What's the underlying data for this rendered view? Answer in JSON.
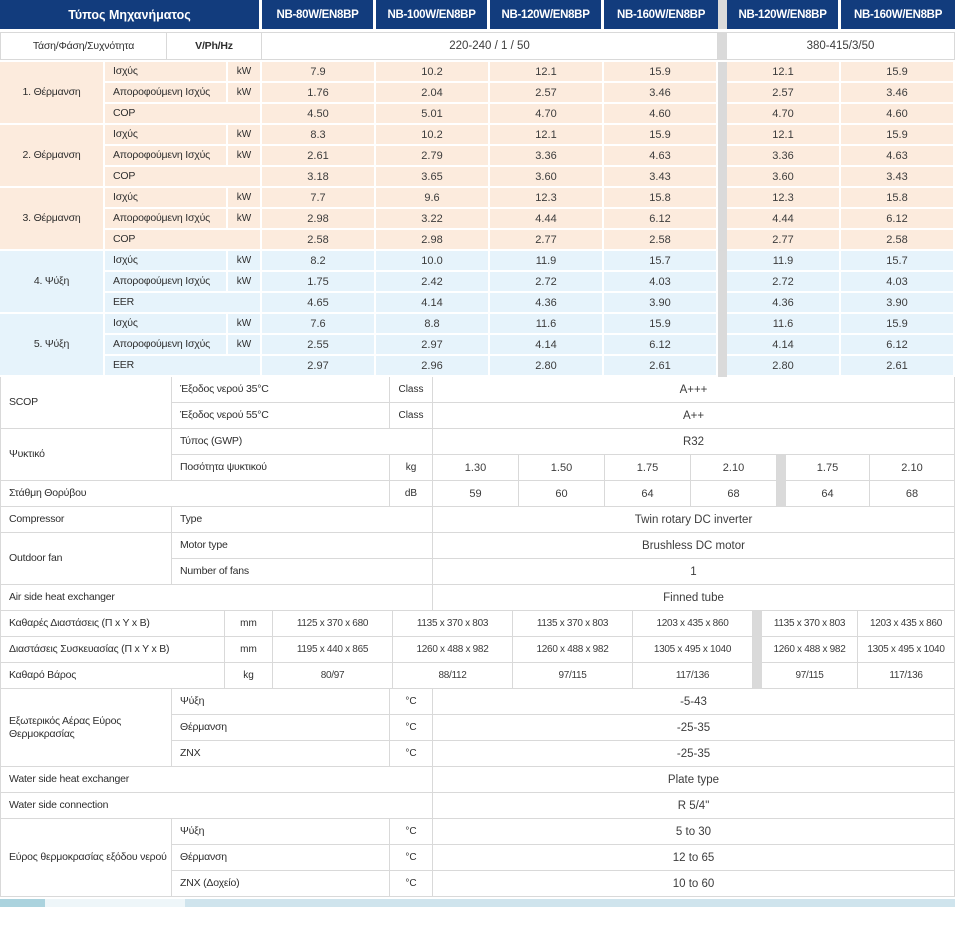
{
  "colors": {
    "navy": "#123c7d",
    "peach": "#fcebdd",
    "light_blue": "#e6f3fb",
    "divider_gray": "#dadada",
    "strip_left": "#abd3de",
    "strip_mid": "#eef6f9",
    "strip_right": "#cfe4ed"
  },
  "table": {
    "header": {
      "label": "Τύπος Μηχανήματος",
      "models": [
        "NB-80W/EN8BP",
        "NB-100W/EN8BP",
        "NB-120W/EN8BP",
        "NB-160W/EN8BP",
        "NB-120W/EN8BP",
        "NB-160W/EN8BP"
      ]
    },
    "voltage": {
      "label": "Τάση/Φάση/Συχνότητα",
      "unit": "V/Ph/Hz",
      "single_phase": "220-240 / 1 / 50",
      "three_phase": "380-415/3/50"
    },
    "sections": [
      {
        "label": "1. Θέρμανση",
        "tone": "peach",
        "rows": [
          {
            "name": "Ισχύς",
            "unit": "kW",
            "values": [
              "7.9",
              "10.2",
              "12.1",
              "15.9",
              "12.1",
              "15.9"
            ]
          },
          {
            "name": "Αποροφούμενη Ισχύς",
            "unit": "kW",
            "values": [
              "1.76",
              "2.04",
              "2.57",
              "3.46",
              "2.57",
              "3.46"
            ]
          },
          {
            "name": "COP",
            "unit": "",
            "values": [
              "4.50",
              "5.01",
              "4.70",
              "4.60",
              "4.70",
              "4.60"
            ]
          }
        ]
      },
      {
        "label": "2. Θέρμανση",
        "tone": "peach",
        "rows": [
          {
            "name": "Ισχύς",
            "unit": "kW",
            "values": [
              "8.3",
              "10.2",
              "12.1",
              "15.9",
              "12.1",
              "15.9"
            ]
          },
          {
            "name": "Αποροφούμενη Ισχύς",
            "unit": "kW",
            "values": [
              "2.61",
              "2.79",
              "3.36",
              "4.63",
              "3.36",
              "4.63"
            ]
          },
          {
            "name": "COP",
            "unit": "",
            "values": [
              "3.18",
              "3.65",
              "3.60",
              "3.43",
              "3.60",
              "3.43"
            ]
          }
        ]
      },
      {
        "label": "3. Θέρμανση",
        "tone": "peach",
        "rows": [
          {
            "name": "Ισχύς",
            "unit": "kW",
            "values": [
              "7.7",
              "9.6",
              "12.3",
              "15.8",
              "12.3",
              "15.8"
            ]
          },
          {
            "name": "Αποροφούμενη Ισχύς",
            "unit": "kW",
            "values": [
              "2.98",
              "3.22",
              "4.44",
              "6.12",
              "4.44",
              "6.12"
            ]
          },
          {
            "name": "COP",
            "unit": "",
            "values": [
              "2.58",
              "2.98",
              "2.77",
              "2.58",
              "2.77",
              "2.58"
            ]
          }
        ]
      },
      {
        "label": "4. Ψύξη",
        "tone": "blue",
        "rows": [
          {
            "name": "Ισχύς",
            "unit": "kW",
            "values": [
              "8.2",
              "10.0",
              "11.9",
              "15.7",
              "11.9",
              "15.7"
            ]
          },
          {
            "name": "Αποροφούμενη Ισχύς",
            "unit": "kW",
            "values": [
              "1.75",
              "2.42",
              "2.72",
              "4.03",
              "2.72",
              "4.03"
            ]
          },
          {
            "name": "EER",
            "unit": "",
            "values": [
              "4.65",
              "4.14",
              "4.36",
              "3.90",
              "4.36",
              "3.90"
            ]
          }
        ]
      },
      {
        "label": "5. Ψύξη",
        "tone": "blue",
        "rows": [
          {
            "name": "Ισχύς",
            "unit": "kW",
            "values": [
              "7.6",
              "8.8",
              "11.6",
              "15.9",
              "11.6",
              "15.9"
            ]
          },
          {
            "name": "Αποροφούμενη Ισχύς",
            "unit": "kW",
            "values": [
              "2.55",
              "2.97",
              "4.14",
              "6.12",
              "4.14",
              "6.12"
            ]
          },
          {
            "name": "EER",
            "unit": "",
            "values": [
              "2.97",
              "2.96",
              "2.80",
              "2.61",
              "2.80",
              "2.61"
            ]
          }
        ]
      }
    ],
    "spec_blocks": [
      {
        "group": "SCOP",
        "rows": [
          {
            "label": "Έξοδος νερού 35°C",
            "unit": "Class",
            "span": "A+++"
          },
          {
            "label": "Έξοδος νερού 55°C",
            "unit": "Class",
            "span": "A++"
          }
        ]
      },
      {
        "group": "Ψυκτικό",
        "rows": [
          {
            "label": "Τύπος (GWP)",
            "merge_unit": true,
            "span": "R32"
          },
          {
            "label": "Ποσότητα ψυκτικού",
            "unit": "kg",
            "values": [
              "1.30",
              "1.50",
              "1.75",
              "2.10",
              "1.75",
              "2.10"
            ]
          }
        ]
      },
      {
        "rows": [
          {
            "label": "Στάθμη Θορύβου",
            "full_label": true,
            "unit": "dB",
            "values": [
              "59",
              "60",
              "64",
              "68",
              "64",
              "68"
            ]
          }
        ]
      },
      {
        "group": "Compressor",
        "rows": [
          {
            "label": "Type",
            "merge_unit": true,
            "span": "Twin rotary DC inverter"
          }
        ]
      },
      {
        "group": "Outdoor fan",
        "rows": [
          {
            "label": "Motor type",
            "merge_unit": true,
            "span": "Brushless DC motor"
          },
          {
            "label": "Number of fans",
            "merge_unit": true,
            "span": "1"
          }
        ]
      },
      {
        "rows": [
          {
            "label": "Air side heat exchanger",
            "full_label": true,
            "merge_unit": true,
            "span": "Finned tube"
          }
        ]
      },
      {
        "rows": [
          {
            "label": "Καθαρές Διαστάσεις (Π x Y x B)",
            "full_label": true,
            "unit": "mm",
            "wide": true,
            "values": [
              "1125 x 370 x 680",
              "1135 x 370 x 803",
              "1135 x 370 x 803",
              "1203 x 435 x 860",
              "1135 x 370 x 803",
              "1203 x 435 x 860"
            ]
          }
        ]
      },
      {
        "rows": [
          {
            "label": "Διαστάσεις Συσκευασίας (Π x Y x B)",
            "full_label": true,
            "unit": "mm",
            "wide": true,
            "values": [
              "1195 x 440 x 865",
              "1260 x 488 x 982",
              "1260 x 488 x 982",
              "1305 x 495 x 1040",
              "1260 x 488 x 982",
              "1305 x 495 x 1040"
            ]
          }
        ]
      },
      {
        "rows": [
          {
            "label": "Καθαρό Βάρος",
            "full_label": true,
            "unit": "kg",
            "wide": true,
            "values": [
              "80/97",
              "88/112",
              "97/115",
              "117/136",
              "97/115",
              "117/136"
            ]
          }
        ]
      },
      {
        "group": "Εξωτερικός Αέρας Εύρος Θερμοκρασίας",
        "rows": [
          {
            "label": "Ψύξη",
            "unit": "°C",
            "span": "-5-43"
          },
          {
            "label": "Θέρμανση",
            "unit": "°C",
            "span": "-25-35"
          },
          {
            "label": "ZNX",
            "unit": "°C",
            "span": "-25-35"
          }
        ]
      },
      {
        "rows": [
          {
            "label": "Water side heat exchanger",
            "full_label": true,
            "merge_unit": true,
            "span": "Plate type"
          }
        ]
      },
      {
        "rows": [
          {
            "label": "Water side connection",
            "full_label": true,
            "merge_unit": true,
            "span": "R 5/4\""
          }
        ]
      },
      {
        "group": "Εύρος θερμοκρασίας εξόδου νερού",
        "rows": [
          {
            "label": "Ψύξη",
            "unit": "°C",
            "span": "5 to 30"
          },
          {
            "label": "Θέρμανση",
            "unit": "°C",
            "span": "12 to 65"
          },
          {
            "label": "ZNX (Δοχείο)",
            "unit": "°C",
            "span": "10 to 60"
          }
        ]
      }
    ]
  }
}
